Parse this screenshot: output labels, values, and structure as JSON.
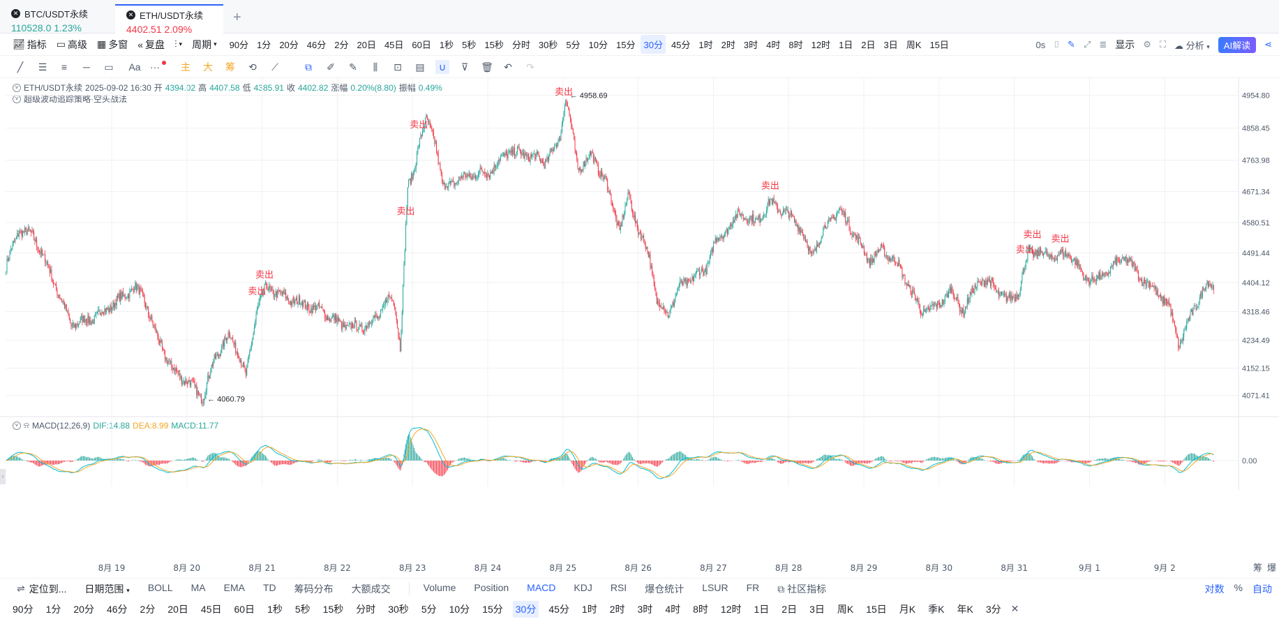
{
  "tabs": [
    {
      "name": "BTC/USDT永续",
      "price": "110528.0",
      "change": "1.23%",
      "color": "#26a69a"
    },
    {
      "name": "ETH/USDT永续",
      "price": "4402.51",
      "change": "2.09%",
      "color": "#f23645",
      "active": true
    }
  ],
  "toolbar": {
    "indicator": "指标",
    "advanced": "高级",
    "multi_window": "多窗",
    "replay": "复盘",
    "period_label": "周期",
    "periods": [
      "90分",
      "1分",
      "20分",
      "46分",
      "2分",
      "20日",
      "45日",
      "60日",
      "1秒",
      "5秒",
      "15秒",
      "分时",
      "30秒",
      "5分",
      "10分",
      "15分",
      "30分",
      "45分",
      "1时",
      "2时",
      "3时",
      "4时",
      "8时",
      "12时",
      "1日",
      "2日",
      "3日",
      "周K",
      "15日"
    ],
    "selected_period": "30分",
    "countdown": "0s",
    "display": "显示",
    "analysis": "分析",
    "ai": "AI解读"
  },
  "draw_tools": {
    "zhu": "主",
    "da": "大",
    "chou": "筹",
    "text": "Aa",
    "more": "···"
  },
  "info": {
    "symbol": "ETH/USDT永续",
    "datetime": "2025-09-02 16:30",
    "open_label": "开",
    "open": "4394.02",
    "high_label": "高",
    "high": "4407.58",
    "low_label": "低",
    "low": "4385.91",
    "close_label": "收",
    "close": "4402.82",
    "chg_label": "涨幅",
    "chg": "0.20%(8.80)",
    "amp_label": "振幅",
    "amp": "0.49%",
    "strategy": "超级波动追踪策略·空头战法"
  },
  "macd_info": {
    "label": "MACD(12,26,9)",
    "dif": "DIF:14.88",
    "dea": "DEA:8.99",
    "macd": "MACD:11.77"
  },
  "chart_data": {
    "type": "candlestick",
    "y_ticks": [
      "4954.80",
      "4858.45",
      "4763.98",
      "4671.34",
      "4580.51",
      "4491.44",
      "4404.12",
      "4318.46",
      "4234.49",
      "4152.15",
      "4071.41"
    ],
    "ylim": [
      4040,
      4985
    ],
    "x_ticks": [
      "8月 19",
      "8月 20",
      "8月 21",
      "8月 22",
      "8月 23",
      "8月 24",
      "8月 25",
      "8月 26",
      "8月 27",
      "8月 28",
      "8月 29",
      "8月 30",
      "8月 31",
      "9月 1",
      "9月 2"
    ],
    "anchors": [
      [
        0,
        4450
      ],
      [
        2,
        4470
      ],
      [
        14,
        4560
      ],
      [
        30,
        4540
      ],
      [
        48,
        4430
      ],
      [
        70,
        4280
      ],
      [
        95,
        4300
      ],
      [
        120,
        4350
      ],
      [
        138,
        4390
      ],
      [
        148,
        4360
      ],
      [
        160,
        4260
      ],
      [
        178,
        4150
      ],
      [
        200,
        4100
      ],
      [
        212,
        4065
      ],
      [
        224,
        4180
      ],
      [
        240,
        4250
      ],
      [
        250,
        4200
      ],
      [
        258,
        4125
      ],
      [
        270,
        4330
      ],
      [
        280,
        4390
      ],
      [
        300,
        4360
      ],
      [
        320,
        4340
      ],
      [
        340,
        4320
      ],
      [
        360,
        4280
      ],
      [
        380,
        4270
      ],
      [
        400,
        4300
      ],
      [
        410,
        4360
      ],
      [
        418,
        4340
      ],
      [
        424,
        4220
      ],
      [
        428,
        4450
      ],
      [
        432,
        4680
      ],
      [
        438,
        4720
      ],
      [
        444,
        4820
      ],
      [
        452,
        4880
      ],
      [
        462,
        4820
      ],
      [
        470,
        4680
      ],
      [
        480,
        4700
      ],
      [
        500,
        4720
      ],
      [
        520,
        4730
      ],
      [
        540,
        4790
      ],
      [
        560,
        4780
      ],
      [
        580,
        4760
      ],
      [
        595,
        4820
      ],
      [
        602,
        4955
      ],
      [
        608,
        4860
      ],
      [
        615,
        4740
      ],
      [
        630,
        4780
      ],
      [
        645,
        4700
      ],
      [
        660,
        4560
      ],
      [
        670,
        4660
      ],
      [
        680,
        4560
      ],
      [
        692,
        4480
      ],
      [
        700,
        4350
      ],
      [
        712,
        4310
      ],
      [
        724,
        4390
      ],
      [
        740,
        4420
      ],
      [
        752,
        4440
      ],
      [
        762,
        4520
      ],
      [
        778,
        4570
      ],
      [
        790,
        4610
      ],
      [
        806,
        4580
      ],
      [
        822,
        4640
      ],
      [
        838,
        4610
      ],
      [
        854,
        4570
      ],
      [
        866,
        4480
      ],
      [
        880,
        4560
      ],
      [
        896,
        4620
      ],
      [
        912,
        4550
      ],
      [
        928,
        4470
      ],
      [
        942,
        4500
      ],
      [
        956,
        4470
      ],
      [
        970,
        4400
      ],
      [
        984,
        4320
      ],
      [
        1000,
        4330
      ],
      [
        1016,
        4380
      ],
      [
        1030,
        4320
      ],
      [
        1046,
        4410
      ],
      [
        1060,
        4400
      ],
      [
        1076,
        4350
      ],
      [
        1090,
        4380
      ],
      [
        1100,
        4500
      ],
      [
        1110,
        4490
      ],
      [
        1128,
        4480
      ],
      [
        1144,
        4490
      ],
      [
        1160,
        4420
      ],
      [
        1174,
        4410
      ],
      [
        1190,
        4450
      ],
      [
        1204,
        4480
      ],
      [
        1220,
        4420
      ],
      [
        1236,
        4380
      ],
      [
        1250,
        4340
      ],
      [
        1262,
        4220
      ],
      [
        1278,
        4330
      ],
      [
        1292,
        4400
      ],
      [
        1300,
        4395
      ]
    ],
    "sell_signals": [
      {
        "i": 270,
        "label": "卖出"
      },
      {
        "i": 278,
        "label": "卖出"
      },
      {
        "i": 430,
        "label": "卖出"
      },
      {
        "i": 444,
        "label": "卖出"
      },
      {
        "i": 600,
        "label": "卖出"
      },
      {
        "i": 822,
        "label": "卖出"
      },
      {
        "i": 1096,
        "label": "卖出"
      },
      {
        "i": 1104,
        "label": "卖出"
      },
      {
        "i": 1134,
        "label": "卖出"
      }
    ],
    "max_label": "← 4958.69",
    "min_label": "← 4060.79",
    "macd_zero": "0.00"
  },
  "bottom_bar": {
    "locate": "定位到...",
    "date_range": "日期范围",
    "indicators": [
      "BOLL",
      "MA",
      "EMA",
      "TD",
      "筹码分布",
      "大额成交"
    ],
    "sub_indicators": [
      "Volume",
      "Position",
      "MACD",
      "KDJ",
      "RSI",
      "爆仓统计",
      "LSUR",
      "FR"
    ],
    "selected_sub": "MACD",
    "community": "社区指标",
    "log": "对数",
    "pct": "%",
    "auto": "自动",
    "chou": "筹",
    "bao": "爆"
  },
  "bottom_periods": [
    "90分",
    "1分",
    "20分",
    "46分",
    "2分",
    "20日",
    "45日",
    "60日",
    "1秒",
    "5秒",
    "15秒",
    "分时",
    "30秒",
    "5分",
    "10分",
    "15分",
    "30分",
    "45分",
    "1时",
    "2时",
    "3时",
    "4时",
    "8时",
    "12时",
    "1日",
    "2日",
    "3日",
    "周K",
    "15日",
    "月K",
    "季K",
    "年K",
    "3分"
  ],
  "bottom_selected": "30分"
}
